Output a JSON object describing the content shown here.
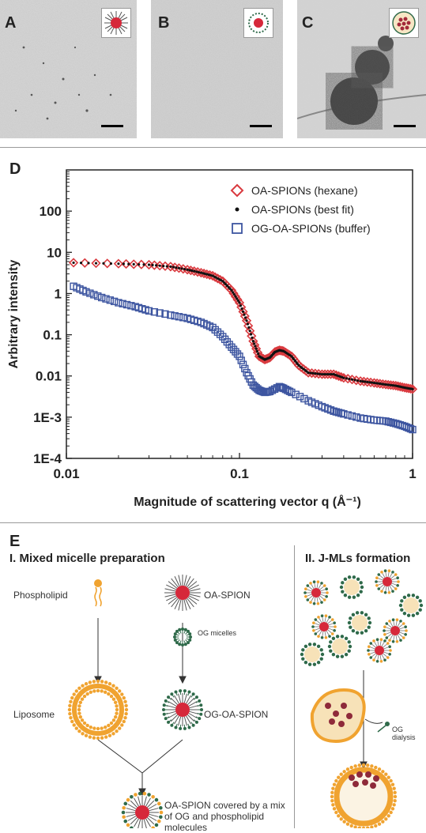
{
  "panels": {
    "a": "A",
    "b": "B",
    "c": "C",
    "d": "D",
    "e": "E"
  },
  "colors": {
    "red_series": "#d93a3f",
    "blue_series": "#3d55a0",
    "fit_series": "#111111",
    "lipid_orange": "#f0a330",
    "og_green": "#2f6a4a",
    "spion_red": "#d6283a"
  },
  "chart_data": {
    "type": "scatter",
    "xscale": "log",
    "yscale": "log",
    "xlim": [
      0.01,
      1
    ],
    "ylim": [
      0.0001,
      1000
    ],
    "xlabel": "Magnitude of scattering vector q (Å⁻¹)",
    "ylabel": "Arbitrary intensity",
    "xticks": [
      "0.01",
      "0.1",
      "1"
    ],
    "yticks": [
      "100",
      "10",
      "1",
      "0.1",
      "0.01",
      "1E-3",
      "1E-4"
    ],
    "legend_position": "top-right",
    "series": [
      {
        "name": "OA-SPIONs (hexane)",
        "marker": "diamond",
        "points": [
          [
            0.011,
            5.6
          ],
          [
            0.02,
            5.3
          ],
          [
            0.03,
            5.0
          ],
          [
            0.04,
            4.5
          ],
          [
            0.05,
            3.8
          ],
          [
            0.06,
            3.2
          ],
          [
            0.07,
            2.7
          ],
          [
            0.08,
            2.0
          ],
          [
            0.09,
            1.2
          ],
          [
            0.1,
            0.6
          ],
          [
            0.11,
            0.22
          ],
          [
            0.12,
            0.07
          ],
          [
            0.13,
            0.03
          ],
          [
            0.14,
            0.025
          ],
          [
            0.15,
            0.028
          ],
          [
            0.16,
            0.038
          ],
          [
            0.17,
            0.042
          ],
          [
            0.18,
            0.04
          ],
          [
            0.2,
            0.03
          ],
          [
            0.22,
            0.018
          ],
          [
            0.25,
            0.012
          ],
          [
            0.3,
            0.011
          ],
          [
            0.35,
            0.011
          ],
          [
            0.4,
            0.009
          ],
          [
            0.5,
            0.0075
          ],
          [
            0.6,
            0.0068
          ],
          [
            0.7,
            0.0062
          ],
          [
            0.8,
            0.0058
          ],
          [
            0.9,
            0.0052
          ],
          [
            1.0,
            0.0048
          ]
        ]
      },
      {
        "name": "OA-SPIONs (best fit)",
        "marker": "dot",
        "points": [
          [
            0.011,
            5.6
          ],
          [
            0.02,
            5.3
          ],
          [
            0.03,
            5.0
          ],
          [
            0.04,
            4.5
          ],
          [
            0.05,
            3.8
          ],
          [
            0.06,
            3.2
          ],
          [
            0.07,
            2.7
          ],
          [
            0.08,
            2.0
          ],
          [
            0.09,
            1.2
          ],
          [
            0.1,
            0.6
          ],
          [
            0.11,
            0.22
          ],
          [
            0.12,
            0.07
          ],
          [
            0.13,
            0.03
          ],
          [
            0.14,
            0.025
          ],
          [
            0.15,
            0.028
          ],
          [
            0.16,
            0.038
          ],
          [
            0.17,
            0.042
          ],
          [
            0.18,
            0.04
          ],
          [
            0.2,
            0.03
          ],
          [
            0.22,
            0.018
          ],
          [
            0.25,
            0.012
          ],
          [
            0.3,
            0.011
          ],
          [
            0.35,
            0.011
          ],
          [
            0.4,
            0.009
          ],
          [
            0.5,
            0.0075
          ],
          [
            0.6,
            0.0068
          ],
          [
            0.7,
            0.0062
          ],
          [
            0.8,
            0.0058
          ],
          [
            0.9,
            0.0052
          ],
          [
            1.0,
            0.0048
          ]
        ]
      },
      {
        "name": "OG-OA-SPIONs (buffer)",
        "marker": "square",
        "points": [
          [
            0.011,
            1.5
          ],
          [
            0.013,
            1.1
          ],
          [
            0.016,
            0.8
          ],
          [
            0.02,
            0.6
          ],
          [
            0.025,
            0.48
          ],
          [
            0.03,
            0.38
          ],
          [
            0.04,
            0.3
          ],
          [
            0.05,
            0.25
          ],
          [
            0.06,
            0.2
          ],
          [
            0.07,
            0.15
          ],
          [
            0.08,
            0.09
          ],
          [
            0.09,
            0.05
          ],
          [
            0.1,
            0.03
          ],
          [
            0.11,
            0.012
          ],
          [
            0.12,
            0.006
          ],
          [
            0.13,
            0.0045
          ],
          [
            0.14,
            0.004
          ],
          [
            0.15,
            0.0042
          ],
          [
            0.17,
            0.0055
          ],
          [
            0.18,
            0.005
          ],
          [
            0.2,
            0.004
          ],
          [
            0.25,
            0.0025
          ],
          [
            0.3,
            0.0018
          ],
          [
            0.35,
            0.0014
          ],
          [
            0.4,
            0.0012
          ],
          [
            0.5,
            0.00095
          ],
          [
            0.6,
            0.00085
          ],
          [
            0.7,
            0.0008
          ],
          [
            0.8,
            0.0007
          ],
          [
            0.9,
            0.0006
          ],
          [
            1.0,
            0.0005
          ]
        ]
      }
    ]
  },
  "diagram": {
    "section1_title": "I. Mixed micelle preparation",
    "section2_title": "II. J-MLs formation",
    "phospholipid": "Phospholipid",
    "oa_spion": "OA-SPION",
    "og_micelles": "OG micelles",
    "liposome": "Liposome",
    "og_oa_spion": "OG-OA-SPION",
    "covered_line1": "OA-SPION covered by a mix",
    "covered_line2": "of OG and phospholipid",
    "covered_line3": "molecules",
    "og_dialysis": "OG dialysis"
  }
}
